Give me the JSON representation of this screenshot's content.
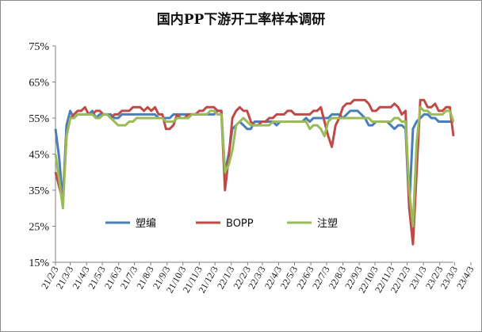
{
  "chart_data": {
    "type": "line",
    "title": "国内PP下游开工率样本调研",
    "xlabel": "",
    "ylabel": "",
    "ylim": [
      15,
      75
    ],
    "yticks": [
      "15%",
      "25%",
      "35%",
      "45%",
      "55%",
      "65%",
      "75%"
    ],
    "x_tick_labels": [
      "21/2/3",
      "21/3/3",
      "21/4/3",
      "21/5/3",
      "21/6/3",
      "21/7/3",
      "21/8/3",
      "21/9/3",
      "21/10/3",
      "21/11/3",
      "21/12/3",
      "22/1/3",
      "22/2/3",
      "22/3/3",
      "22/4/3",
      "22/5/3",
      "22/6/3",
      "22/7/3",
      "22/8/3",
      "22/9/3",
      "22/10/3",
      "22/11/3",
      "22/12/3",
      "23/1/3",
      "23/2/3",
      "23/3/3",
      "23/4/3"
    ],
    "x_start": "2021-02-03",
    "grid": false,
    "legend": "inside-lower-middle",
    "series": [
      {
        "name": "塑编",
        "color": "#4a7ebb",
        "values": [
          52,
          44,
          32,
          53,
          57,
          55,
          56,
          56,
          56,
          56,
          57,
          55,
          56,
          56,
          56,
          56,
          55,
          55,
          56,
          56,
          56,
          56,
          56,
          56,
          56,
          56,
          56,
          56,
          55,
          55,
          55,
          55,
          56,
          56,
          56,
          56,
          56,
          56,
          56,
          56,
          56,
          56,
          56,
          56,
          57,
          57,
          40,
          45,
          52,
          53,
          54,
          53,
          52,
          52,
          54,
          54,
          54,
          54,
          54,
          54,
          53,
          54,
          54,
          54,
          54,
          54,
          54,
          54,
          55,
          54,
          55,
          55,
          55,
          55,
          55,
          56,
          56,
          56,
          55,
          56,
          57,
          57,
          57,
          56,
          55,
          53,
          53,
          54,
          54,
          54,
          54,
          53,
          52,
          53,
          53,
          52,
          30,
          52,
          54,
          55,
          56,
          56,
          55,
          55,
          54,
          54,
          54,
          54,
          54
        ]
      },
      {
        "name": "BOPP",
        "color": "#be4b48",
        "values": [
          40,
          36,
          32,
          50,
          55,
          56,
          57,
          57,
          58,
          56,
          56,
          57,
          57,
          56,
          56,
          55,
          56,
          56,
          57,
          57,
          57,
          58,
          58,
          58,
          57,
          58,
          57,
          58,
          56,
          56,
          52,
          52,
          53,
          56,
          55,
          55,
          56,
          56,
          56,
          57,
          57,
          58,
          58,
          58,
          57,
          57,
          35,
          44,
          55,
          57,
          58,
          57,
          57,
          54,
          53,
          53,
          54,
          54,
          55,
          55,
          56,
          56,
          56,
          57,
          57,
          56,
          56,
          56,
          56,
          56,
          57,
          57,
          58,
          54,
          50,
          47,
          53,
          55,
          58,
          59,
          59,
          60,
          60,
          60,
          60,
          59,
          57,
          57,
          58,
          58,
          58,
          58,
          59,
          58,
          56,
          57,
          30,
          20,
          40,
          60,
          60,
          58,
          58,
          59,
          57,
          57,
          58,
          58,
          50
        ]
      },
      {
        "name": "注塑",
        "color": "#9bbb59",
        "values": [
          45,
          38,
          30,
          50,
          55,
          55,
          56,
          56,
          56,
          56,
          56,
          55,
          55,
          56,
          56,
          55,
          54,
          53,
          53,
          53,
          54,
          54,
          55,
          55,
          55,
          55,
          55,
          55,
          55,
          55,
          54,
          54,
          54,
          55,
          55,
          55,
          55,
          56,
          56,
          56,
          56,
          56,
          57,
          57,
          56,
          56,
          40,
          42,
          46,
          53,
          54,
          55,
          54,
          53,
          53,
          53,
          53,
          53,
          53,
          54,
          54,
          54,
          54,
          54,
          54,
          54,
          54,
          54,
          54,
          52,
          53,
          53,
          52,
          50,
          54,
          55,
          55,
          55,
          55,
          55,
          55,
          55,
          55,
          55,
          55,
          55,
          54,
          54,
          54,
          54,
          54,
          54,
          55,
          55,
          54,
          54,
          35,
          25,
          48,
          58,
          57,
          57,
          56,
          56,
          56,
          56,
          57,
          57,
          54
        ]
      }
    ]
  }
}
